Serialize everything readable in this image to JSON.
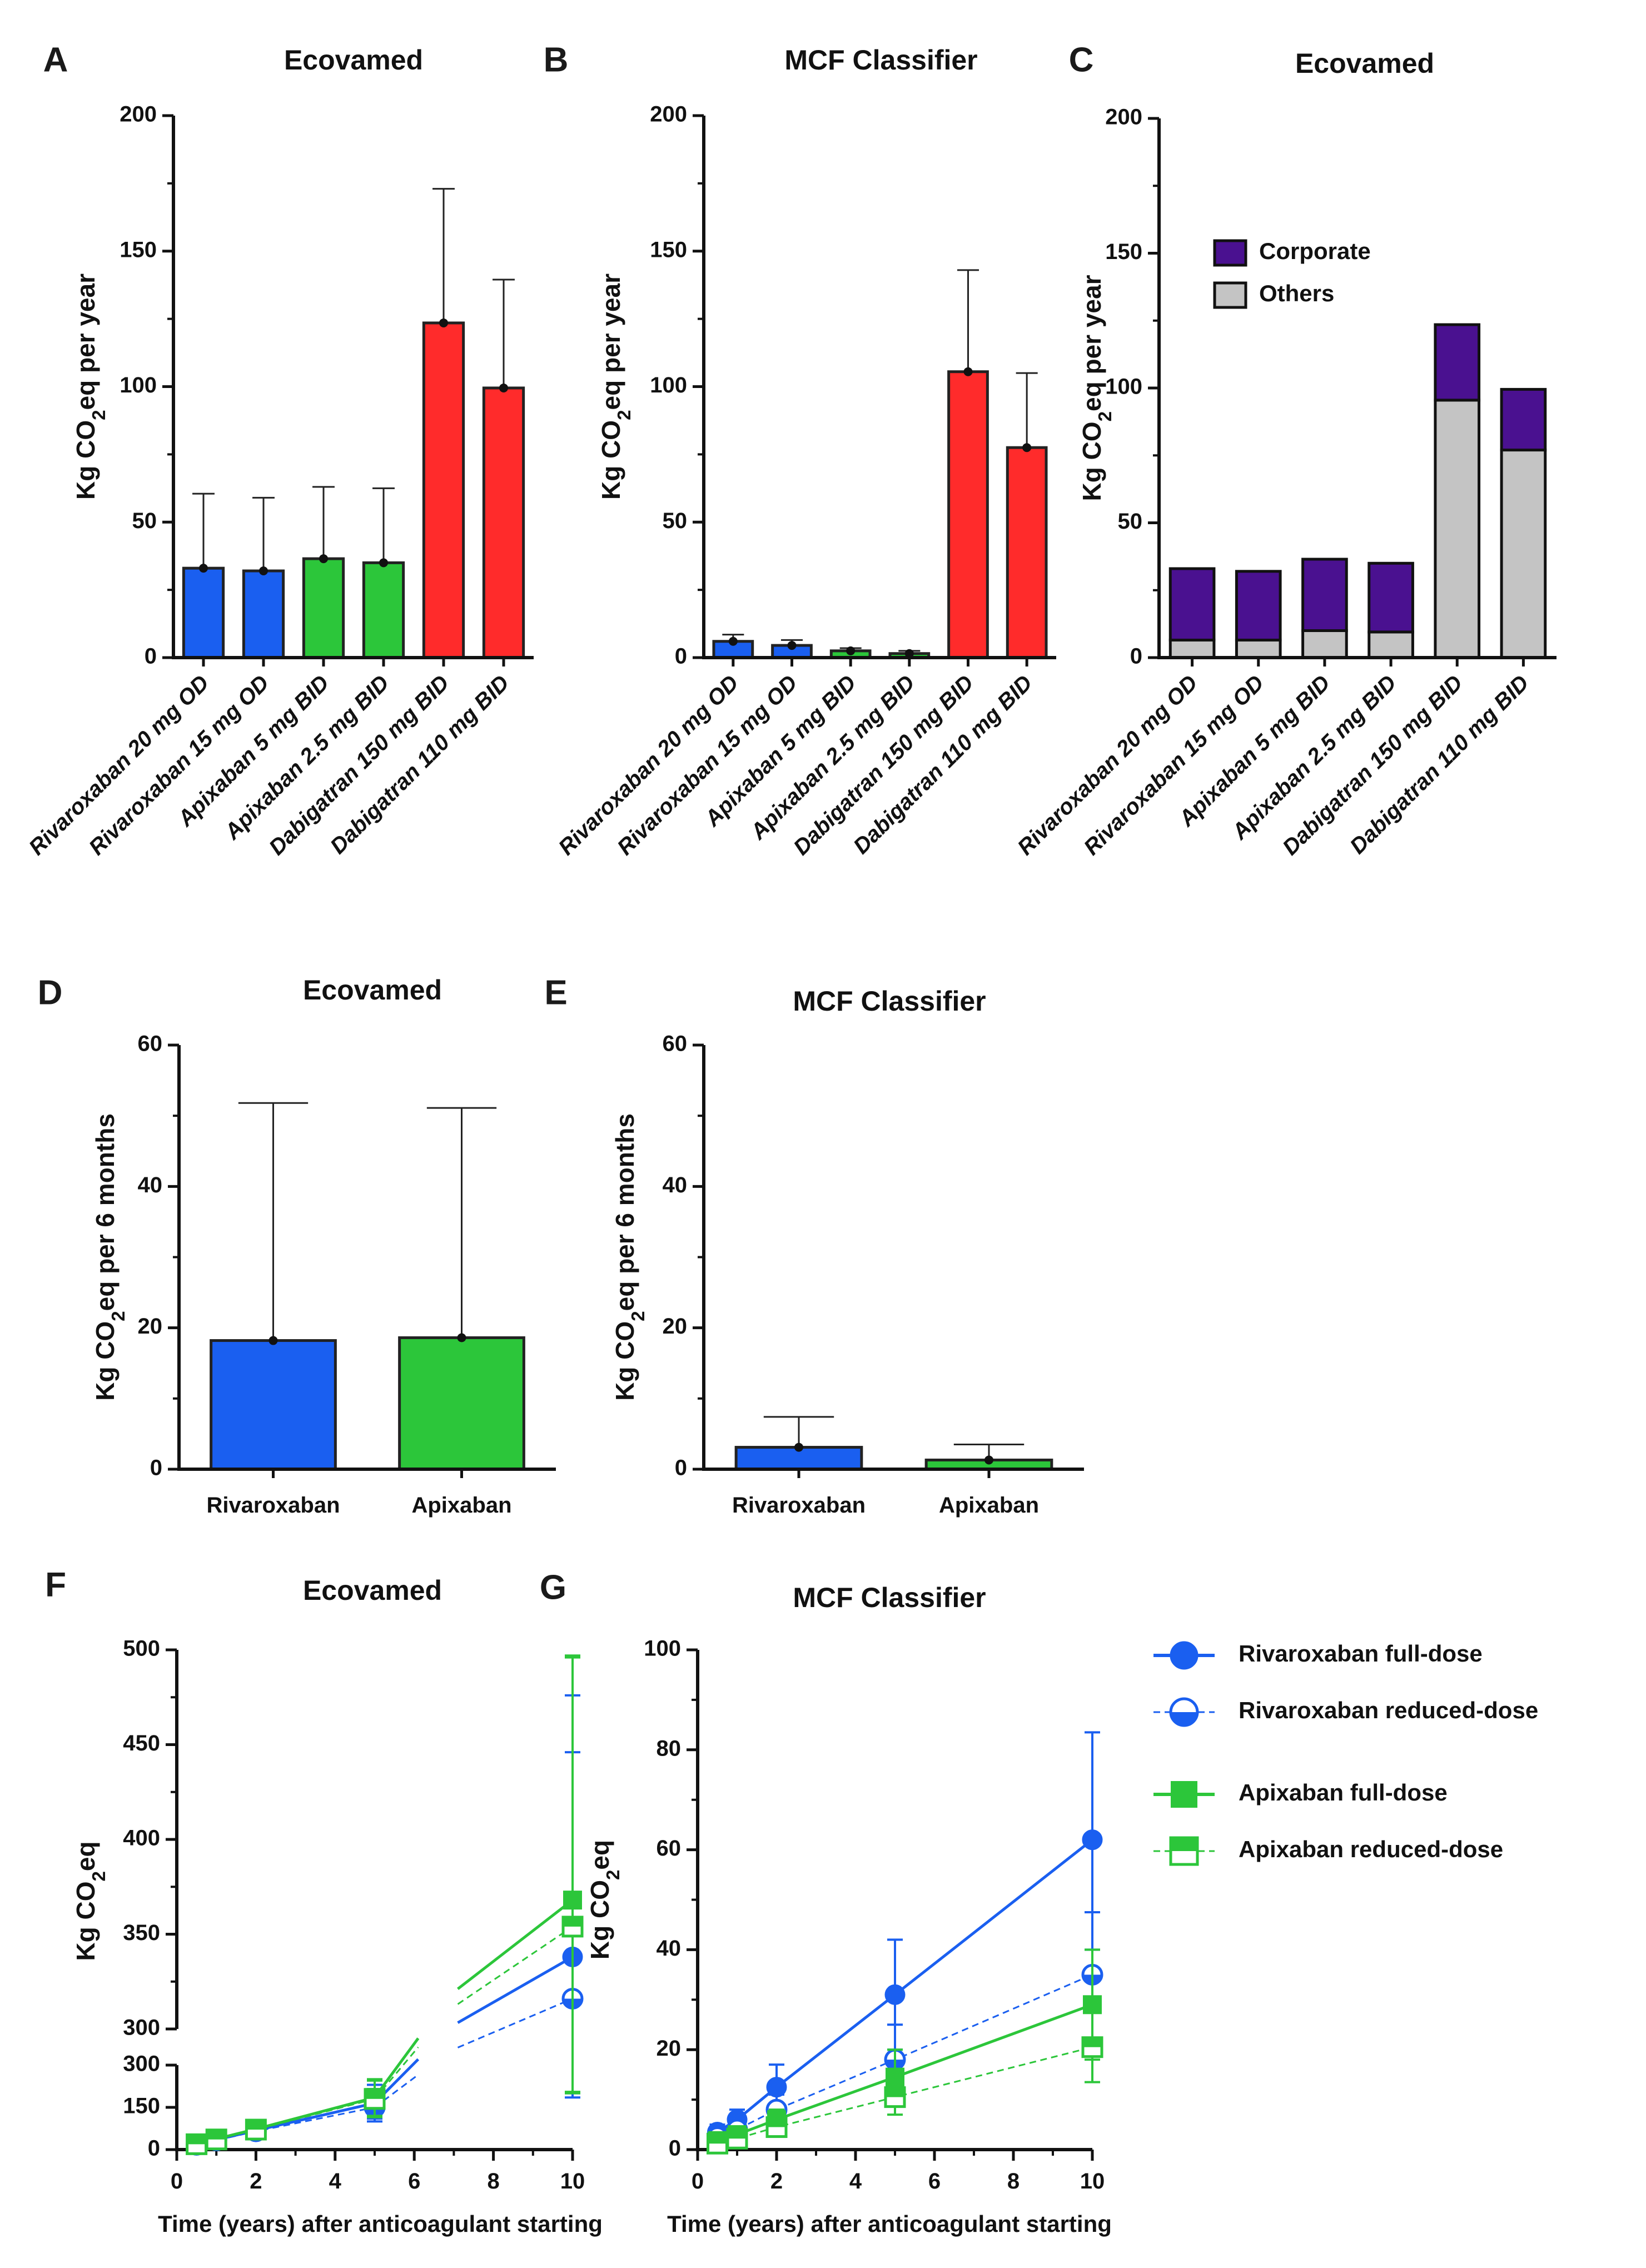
{
  "colors": {
    "rivaroxaban": "#1a5ff0",
    "apixaban": "#2cc63a",
    "dabigatran": "#ff2b2b",
    "corporate": "#4a1190",
    "others": "#c4c4c4"
  },
  "chart_data": [
    {
      "id": "A",
      "panel_label": "A",
      "type": "bar",
      "title": "Ecovamed",
      "categories": [
        "Rivaroxaban 20 mg OD",
        "Rivaroxaban 15 mg OD",
        "Apixaban 5 mg BID",
        "Apixaban 2.5 mg BID",
        "Dabigatran 150 mg BID",
        "Dabigatran 110 mg BID"
      ],
      "values": [
        33,
        32,
        36.5,
        35,
        123.5,
        99.5
      ],
      "error_upper": [
        60.5,
        59,
        63,
        62.5,
        173,
        139.5
      ],
      "bar_colors": [
        "rivaroxaban",
        "rivaroxaban",
        "apixaban",
        "apixaban",
        "dabigatran",
        "dabigatran"
      ],
      "ylabel": "Kg CO₂eq  per year",
      "ylim": [
        0,
        200
      ],
      "yticks": [
        0,
        50,
        100,
        150,
        200
      ]
    },
    {
      "id": "B",
      "panel_label": "B",
      "type": "bar",
      "title": "MCF Classifier",
      "categories": [
        "Rivaroxaban 20 mg OD",
        "Rivaroxaban 15 mg OD",
        "Apixaban 5 mg BID",
        "Apixaban 2.5 mg BID",
        "Dabigatran 150 mg BID",
        "Dabigatran 110 mg BID"
      ],
      "values": [
        6,
        4.5,
        2.5,
        1.5,
        105.5,
        77.5
      ],
      "error_upper": [
        8.5,
        6.5,
        3.5,
        2.5,
        143,
        105
      ],
      "bar_colors": [
        "rivaroxaban",
        "rivaroxaban",
        "apixaban",
        "apixaban",
        "dabigatran",
        "dabigatran"
      ],
      "ylabel": "Kg CO₂eq  per year",
      "ylim": [
        0,
        200
      ],
      "yticks": [
        0,
        50,
        100,
        150,
        200
      ]
    },
    {
      "id": "C",
      "panel_label": "C",
      "type": "stacked-bar",
      "title": "Ecovamed",
      "categories": [
        "Rivaroxaban 20 mg OD",
        "Rivaroxaban 15 mg OD",
        "Apixaban 5 mg BID",
        "Apixaban 2.5 mg BID",
        "Dabigatran 150 mg BID",
        "Dabigatran 110 mg BID"
      ],
      "series": [
        {
          "name": "Others",
          "color": "others",
          "values": [
            6.5,
            6.5,
            10,
            9.5,
            95.5,
            77
          ]
        },
        {
          "name": "Corporate",
          "color": "corporate",
          "values": [
            26.5,
            25.5,
            26.5,
            25.5,
            28,
            22.5
          ]
        }
      ],
      "legend": [
        "Corporate",
        "Others"
      ],
      "legend_position": "top-left",
      "ylabel": "Kg CO₂eq  per year",
      "ylim": [
        0,
        200
      ],
      "yticks": [
        0,
        50,
        100,
        150,
        200
      ]
    },
    {
      "id": "D",
      "panel_label": "D",
      "type": "bar",
      "title": "Ecovamed",
      "categories": [
        "Rivaroxaban",
        "Apixaban"
      ],
      "values": [
        18.2,
        18.6
      ],
      "error_upper": [
        51.8,
        51.1
      ],
      "bar_colors": [
        "rivaroxaban",
        "apixaban"
      ],
      "ylabel": "Kg CO₂eq per 6 months",
      "ylim": [
        0,
        60
      ],
      "yticks": [
        0,
        20,
        40,
        60
      ]
    },
    {
      "id": "E",
      "panel_label": "E",
      "type": "bar",
      "title": "MCF Classifier",
      "categories": [
        "Rivaroxaban",
        "Apixaban"
      ],
      "values": [
        3.1,
        1.3
      ],
      "error_upper": [
        7.4,
        3.5
      ],
      "bar_colors": [
        "rivaroxaban",
        "apixaban"
      ],
      "ylabel": "Kg CO₂eq per 6 months",
      "ylim": [
        0,
        60
      ],
      "yticks": [
        0,
        20,
        40,
        60
      ]
    },
    {
      "id": "F",
      "panel_label": "F",
      "type": "line",
      "title": "Ecovamed",
      "x": [
        0.5,
        1,
        2,
        5,
        10
      ],
      "xlabel": "Time (years) after anticoagulant starting",
      "ylabel": "Kg CO₂eq",
      "xlim": [
        0,
        10
      ],
      "xticks": [
        0,
        2,
        4,
        6,
        8,
        10
      ],
      "ylim": [
        0,
        500
      ],
      "y_axis_break": [
        300,
        300
      ],
      "yticks_lower": [
        0,
        150,
        300
      ],
      "yticks_upper": [
        300,
        350,
        400,
        450,
        500
      ],
      "series": [
        {
          "name": "Rivaroxaban full-dose",
          "values": [
            18,
            35,
            68,
            165,
            338
          ],
          "error_low": [
            8,
            22,
            50,
            110,
            200
          ],
          "error_high": [
            30,
            50,
            88,
            230,
            476
          ]
        },
        {
          "name": "Rivaroxaban reduced-dose",
          "values": [
            17,
            33,
            65,
            150,
            316
          ],
          "error_low": [
            8,
            20,
            48,
            100,
            185
          ],
          "error_high": [
            28,
            48,
            84,
            215,
            446
          ]
        },
        {
          "name": "Apixaban full-dose",
          "values": [
            20,
            38,
            73,
            185,
            368
          ],
          "error_low": [
            10,
            25,
            55,
            120,
            205
          ],
          "error_high": [
            32,
            52,
            92,
            250,
            497
          ]
        },
        {
          "name": "Apixaban reduced-dose",
          "values": [
            19,
            36,
            71,
            180,
            354
          ],
          "error_low": [
            10,
            24,
            53,
            115,
            200
          ],
          "error_high": [
            30,
            50,
            90,
            245,
            496
          ]
        }
      ]
    },
    {
      "id": "G",
      "panel_label": "G",
      "type": "line",
      "title": "MCF Classifier",
      "x": [
        0.5,
        1,
        2,
        5,
        10
      ],
      "xlabel": "Time (years) after anticoagulant starting",
      "ylabel": "Kg CO₂eq",
      "xlim": [
        0,
        10
      ],
      "xticks": [
        0,
        2,
        4,
        6,
        8,
        10
      ],
      "ylim": [
        0,
        100
      ],
      "yticks": [
        0,
        20,
        40,
        60,
        80,
        100
      ],
      "series": [
        {
          "name": "Rivaroxaban full-dose",
          "values": [
            3.5,
            6,
            12.5,
            31,
            62
          ],
          "error_low": [
            2,
            4,
            8,
            20,
            40
          ],
          "error_high": [
            5,
            8,
            17,
            42,
            83.5
          ]
        },
        {
          "name": "Rivaroxaban reduced-dose",
          "values": [
            2.5,
            4,
            8,
            18,
            35
          ],
          "error_low": [
            1.5,
            2.5,
            5,
            12,
            22
          ],
          "error_high": [
            3.5,
            5.5,
            11,
            25,
            47.5
          ]
        },
        {
          "name": "Apixaban full-dose",
          "values": [
            1.8,
            3,
            6,
            14.5,
            29
          ],
          "error_low": [
            1,
            2,
            4,
            9,
            18
          ],
          "error_high": [
            2.6,
            4,
            8,
            20,
            40
          ]
        },
        {
          "name": "Apixaban reduced-dose",
          "values": [
            1.2,
            2.2,
            4.5,
            10.5,
            20.5
          ],
          "error_low": [
            0.6,
            1.4,
            3,
            7,
            13.5
          ],
          "error_high": [
            1.8,
            3,
            6,
            14,
            27.5
          ]
        }
      ]
    }
  ],
  "legend_fg": [
    {
      "name": "Rivaroxaban full-dose",
      "color": "rivaroxaban",
      "marker": "circle",
      "fill": "full",
      "dash": false
    },
    {
      "name": "Rivaroxaban reduced-dose",
      "color": "rivaroxaban",
      "marker": "circle",
      "fill": "half",
      "dash": true
    },
    {
      "name": "Apixaban full-dose",
      "color": "apixaban",
      "marker": "square",
      "fill": "full",
      "dash": false
    },
    {
      "name": "Apixaban reduced-dose",
      "color": "apixaban",
      "marker": "square",
      "fill": "half",
      "dash": true
    }
  ]
}
